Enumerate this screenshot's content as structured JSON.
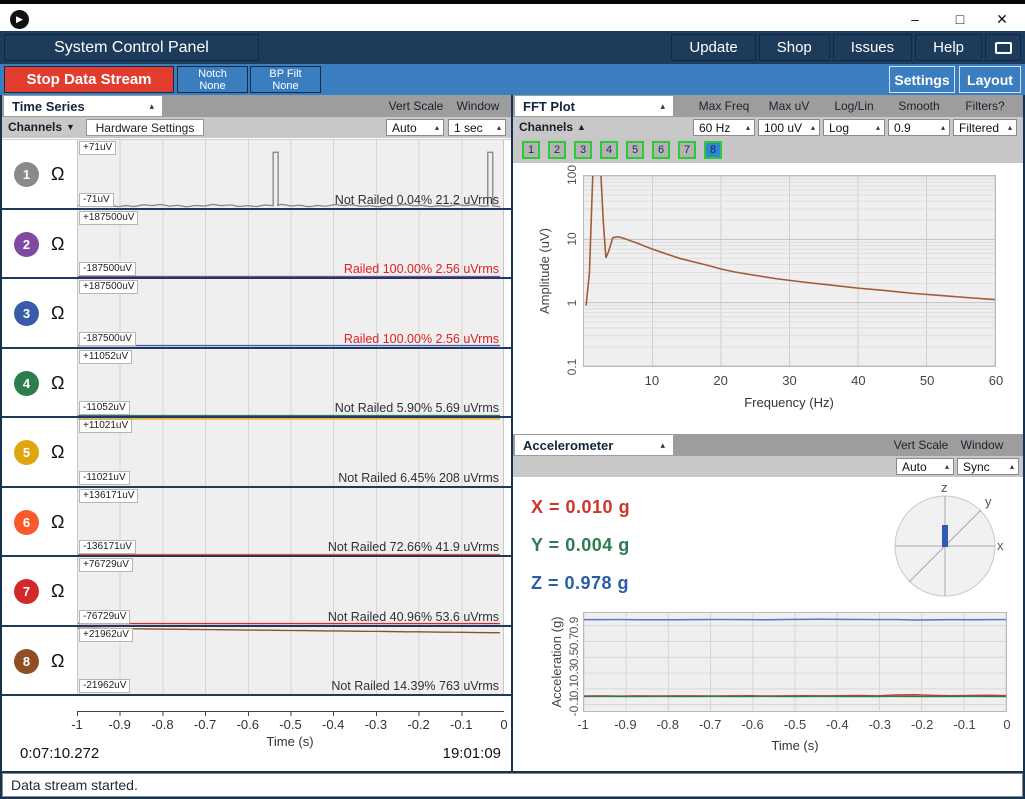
{
  "icons": {
    "arrow_up": "▴",
    "arrow_down": "▼",
    "arrow_up_filled": "▲",
    "play": "▶",
    "console_dots": "···"
  },
  "titlebar": {
    "minimize": "–",
    "maximize": "□",
    "close": "✕"
  },
  "navbar": {
    "title": "System Control Panel",
    "buttons": [
      "Update",
      "Shop",
      "Issues",
      "Help"
    ]
  },
  "subnav": {
    "stop_button": "Stop Data Stream",
    "notch_line1": "Notch",
    "notch_line2": "None",
    "bp_line1": "BP Filt",
    "bp_line2": "None",
    "settings": "Settings",
    "layout": "Layout"
  },
  "timeseries": {
    "title": "Time Series",
    "vert_scale_label": "Vert Scale",
    "window_label": "Window",
    "channels_button": "Channels",
    "hardware_settings_button": "Hardware Settings",
    "vert_scale_value": "Auto",
    "window_value": "1 sec",
    "impedance_symbol": "Ω",
    "xlabel": "Time (s)",
    "elapsed": "0:07:10.272",
    "clock": "19:01:09"
  },
  "fft": {
    "title": "FFT Plot",
    "labels": {
      "max_freq": "Max Freq",
      "max_uv": "Max uV",
      "log_lin": "Log/Lin",
      "smooth": "Smooth",
      "filters": "Filters?"
    },
    "channels_button": "Channels",
    "values": {
      "max_freq": "60 Hz",
      "max_uv": "100 uV",
      "log_lin": "Log",
      "smooth": "0.9",
      "filters": "Filtered"
    },
    "channel_buttons": [
      "1",
      "2",
      "3",
      "4",
      "5",
      "6",
      "7",
      "8"
    ],
    "selected_channel": "8",
    "xlabel": "Frequency (Hz)",
    "ylabel": "Amplitude (uV)"
  },
  "accel": {
    "title": "Accelerometer",
    "vert_scale_label": "Vert Scale",
    "window_label": "Window",
    "vert_scale_value": "Auto",
    "window_value": "Sync",
    "x_value": "X = 0.010 g",
    "y_value": "Y = 0.004 g",
    "z_value": "Z = 0.978 g",
    "axis_labels": {
      "x": "x",
      "y": "y",
      "z": "z"
    },
    "xlabel": "Time (s)",
    "ylabel": "Acceleration (g)"
  },
  "statusbar": {
    "message": "Data stream started."
  },
  "colors": {
    "navy": "#1d3c5c",
    "light_blue": "#3b7ec0",
    "stop_red": "#e23c2e",
    "railed_red": "#e02020",
    "x_red": "#d0342c",
    "y_green": "#2e7d52",
    "z_blue": "#5577c2",
    "channel_button_border_green": "#2dc937",
    "selected_channel_blue": "#2e86d1"
  },
  "chart_data": [
    {
      "id": "timeseries",
      "type": "line",
      "title": "Time Series",
      "xlabel": "Time (s)",
      "xlim": [
        -1,
        0
      ],
      "xticks": [
        -1,
        -0.9,
        -0.8,
        -0.7,
        -0.6,
        -0.5,
        -0.4,
        -0.3,
        -0.2,
        -0.1,
        0
      ],
      "grid": true,
      "channels": [
        {
          "num": "1",
          "color": "#8a8a8d",
          "scale_uV": 71,
          "scale_label_pos": "+71uV",
          "scale_label_neg": "-71uV",
          "status": "Not Railed 0.04% 21.2 uVrms",
          "railed": false,
          "baseline_uV": -67,
          "noise_uV": 1.5,
          "spikes": [
            {
              "t": -0.535,
              "amp_uV": 45
            },
            {
              "t": -0.03,
              "amp_uV": 45
            }
          ]
        },
        {
          "num": "2",
          "color": "#7f4aa0",
          "scale_uV": 187500,
          "scale_label_pos": "+187500uV",
          "scale_label_neg": "-187500uV",
          "status": "Railed 100.00% 2.56 uVrms",
          "railed": true,
          "baseline_uV": -186000,
          "spikes": []
        },
        {
          "num": "3",
          "color": "#3a5ba9",
          "scale_uV": 187500,
          "scale_label_pos": "+187500uV",
          "scale_label_neg": "-187500uV",
          "status": "Railed 100.00% 2.56 uVrms",
          "railed": true,
          "baseline_uV": -186000,
          "spikes": []
        },
        {
          "num": "4",
          "color": "#2e7d4f",
          "scale_uV": 11052,
          "scale_label_pos": "+11052uV",
          "scale_label_neg": "-11052uV",
          "status": "Not Railed 5.90% 5.69 uVrms",
          "railed": false,
          "baseline_uV": -10850,
          "spikes": []
        },
        {
          "num": "5",
          "color": "#e0a60f",
          "scale_uV": 11021,
          "scale_label_pos": "+11021uV",
          "scale_label_neg": "-11021uV",
          "status": "Not Railed 6.45% 208 uVrms",
          "railed": false,
          "baseline_uV": 10850,
          "spikes": []
        },
        {
          "num": "6",
          "color": "#f95a2c",
          "scale_uV": 136171,
          "scale_label_pos": "+136171uV",
          "scale_label_neg": "-136171uV",
          "status": "Not Railed 72.66% 41.9 uVrms",
          "railed": false,
          "baseline_uV": -134000,
          "spikes": []
        },
        {
          "num": "7",
          "color": "#d3292b",
          "scale_uV": 76729,
          "scale_label_pos": "+76729uV",
          "scale_label_neg": "-76729uV",
          "status": "Not Railed 40.96% 53.6 uVrms",
          "railed": false,
          "baseline_uV": -75500,
          "spikes": []
        },
        {
          "num": "8",
          "color": "#8f4f25",
          "scale_uV": 21962,
          "scale_label_pos": "+21962uV",
          "scale_label_neg": "-21962uV",
          "status": "Not Railed 14.39% 763 uVrms",
          "railed": false,
          "baseline_uV": 21200,
          "trend_uV": [
            21200,
            18200
          ],
          "spikes": []
        }
      ]
    },
    {
      "id": "fft",
      "type": "line",
      "title": "FFT Plot",
      "xlabel": "Frequency (Hz)",
      "ylabel": "Amplitude (uV)",
      "xlim": [
        0,
        60
      ],
      "ylim_log": [
        0.1,
        100
      ],
      "xticks": [
        10,
        20,
        30,
        40,
        50,
        60
      ],
      "yticks": [
        100,
        10,
        1,
        0.1
      ],
      "grid": true,
      "scale": "log",
      "note": "peak near 1.5-2.5 Hz is clipped above 100 uV",
      "series": [
        {
          "name": "channel-8",
          "color": "#a15c35",
          "points": [
            [
              0.3,
              0.9
            ],
            [
              0.8,
              3
            ],
            [
              1.2,
              60
            ],
            [
              1.5,
              400
            ],
            [
              2.2,
              400
            ],
            [
              2.8,
              20
            ],
            [
              3.2,
              5.1
            ],
            [
              3.6,
              6.5
            ],
            [
              4.2,
              10.6
            ],
            [
              5,
              11
            ],
            [
              5.8,
              10.4
            ],
            [
              7,
              9.3
            ],
            [
              8,
              8.5
            ],
            [
              9,
              7.7
            ],
            [
              10,
              7.0
            ],
            [
              12,
              5.9
            ],
            [
              14,
              5.0
            ],
            [
              16,
              4.4
            ],
            [
              18,
              3.9
            ],
            [
              20,
              3.4
            ],
            [
              22,
              3.05
            ],
            [
              25,
              2.7
            ],
            [
              28,
              2.4
            ],
            [
              30,
              2.25
            ],
            [
              33,
              2.05
            ],
            [
              36,
              1.9
            ],
            [
              40,
              1.7
            ],
            [
              44,
              1.55
            ],
            [
              48,
              1.4
            ],
            [
              52,
              1.3
            ],
            [
              56,
              1.2
            ],
            [
              60,
              1.12
            ]
          ]
        }
      ]
    },
    {
      "id": "accelerometer",
      "type": "line",
      "title": "Accelerometer",
      "xlabel": "Time (s)",
      "ylabel": "Acceleration (g)",
      "xlim": [
        -1,
        0
      ],
      "xticks": [
        -1,
        -0.9,
        -0.8,
        -0.7,
        -0.6,
        -0.5,
        -0.4,
        -0.3,
        -0.2,
        -0.1,
        0
      ],
      "yticks": [
        -0.1,
        0.1,
        0.3,
        0.5,
        0.7,
        0.9
      ],
      "grid": true,
      "current_values_g": {
        "x": 0.01,
        "y": 0.004,
        "z": 0.978
      },
      "series": [
        {
          "name": "x",
          "color": "#d0342c",
          "values": [
            0.01,
            0.011,
            0.009,
            0.012,
            0.01,
            0.011,
            0.012,
            0.01,
            0.011,
            0.013,
            0.01,
            0.012,
            0.014,
            0.011,
            0.013,
            0.016,
            0.012,
            0.022,
            0.026,
            0.018,
            0.013,
            0.016,
            0.02,
            0.015
          ]
        },
        {
          "name": "y",
          "color": "#2e7d52",
          "values": [
            0.004,
            0.005,
            0.003,
            0.004,
            0.005,
            0.004,
            0.003,
            0.005,
            0.004,
            0.004,
            0.005,
            0.003,
            0.004,
            0.005,
            0.004,
            0.004,
            0.003,
            0.005,
            0.004,
            0.003,
            0.004,
            0.005,
            0.004,
            0.004
          ]
        },
        {
          "name": "z",
          "color": "#5577c2",
          "values": [
            0.976,
            0.976,
            0.977,
            0.975,
            0.974,
            0.975,
            0.976,
            0.978,
            0.977,
            0.976,
            0.975,
            0.978,
            0.98,
            0.981,
            0.979,
            0.978,
            0.977,
            0.977,
            0.972,
            0.973,
            0.976,
            0.975,
            0.976,
            0.977
          ]
        }
      ]
    }
  ]
}
